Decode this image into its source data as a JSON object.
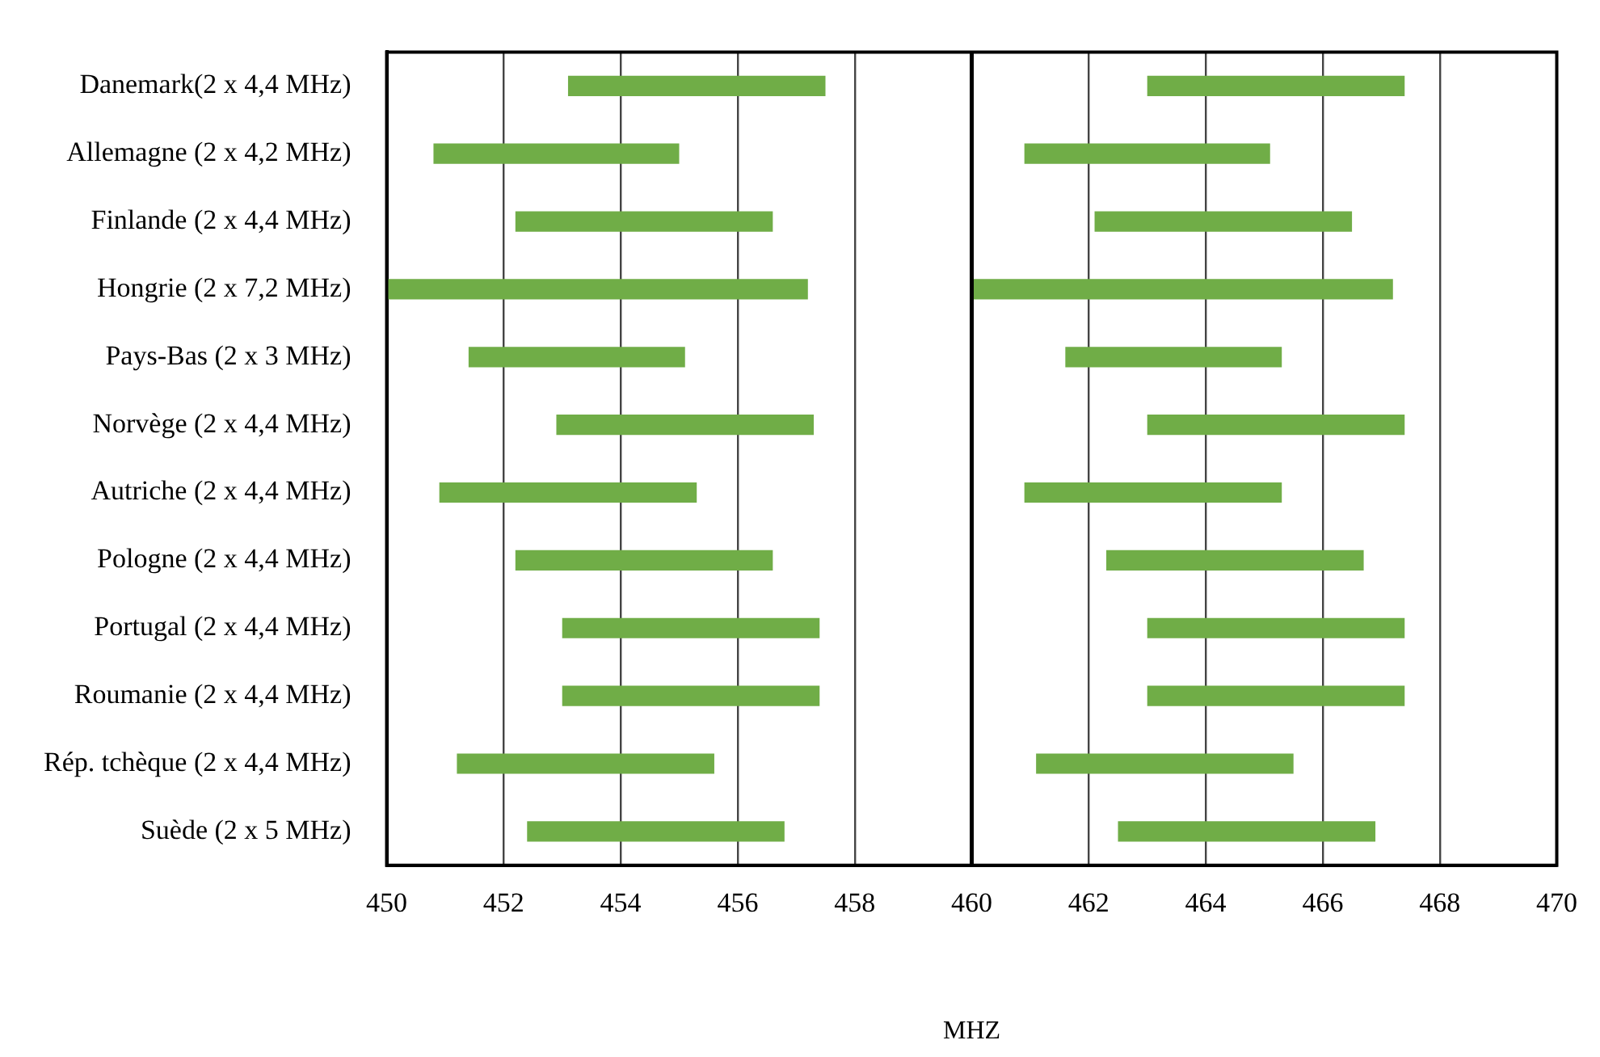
{
  "chart_data": {
    "type": "bar",
    "orientation": "horizontal",
    "xlabel": "MHZ",
    "categories": [
      "Danemark(2 x 4,4 MHz)",
      "Allemagne (2 x 4,2 MHz)",
      "Finlande (2 x 4,4 MHz)",
      "Hongrie (2 x 7,2 MHz)",
      "Pays-Bas (2 x 3 MHz)",
      "Norvège (2 x 4,4 MHz)",
      "Autriche (2 x 4,4 MHz)",
      "Pologne (2 x 4,4 MHz)",
      "Portugal (2 x 4,4 MHz)",
      "Roumanie (2 x 4,4 MHz)",
      "Rép. tchèque (2 x 4,4 MHz)",
      "Suède (2 x 5 MHz)"
    ],
    "series": [
      {
        "color": "#70ad47",
        "base": [
          453.1,
          450.8,
          452.2,
          450.0,
          451.4,
          452.9,
          450.9,
          452.2,
          453.0,
          453.0,
          451.2,
          452.4
        ],
        "values": [
          4.4,
          4.2,
          4.4,
          7.2,
          3.7,
          4.4,
          4.4,
          4.4,
          4.4,
          4.4,
          4.4,
          4.4
        ]
      },
      {
        "color": "#70ad47",
        "base": [
          463.0,
          460.9,
          462.1,
          460.0,
          461.6,
          463.0,
          460.9,
          462.3,
          463.0,
          463.0,
          461.1,
          462.5
        ],
        "values": [
          4.4,
          4.2,
          4.4,
          7.2,
          3.7,
          4.4,
          4.4,
          4.4,
          4.4,
          4.4,
          4.4,
          4.4
        ]
      }
    ],
    "xlim": [
      450,
      470
    ],
    "xticks": [
      450,
      452,
      454,
      456,
      458,
      460,
      462,
      464,
      466,
      468,
      470
    ],
    "grid": "x",
    "legend": false,
    "ref_lines": [
      {
        "axis": "x",
        "value": 460,
        "color": "#000000"
      }
    ]
  }
}
